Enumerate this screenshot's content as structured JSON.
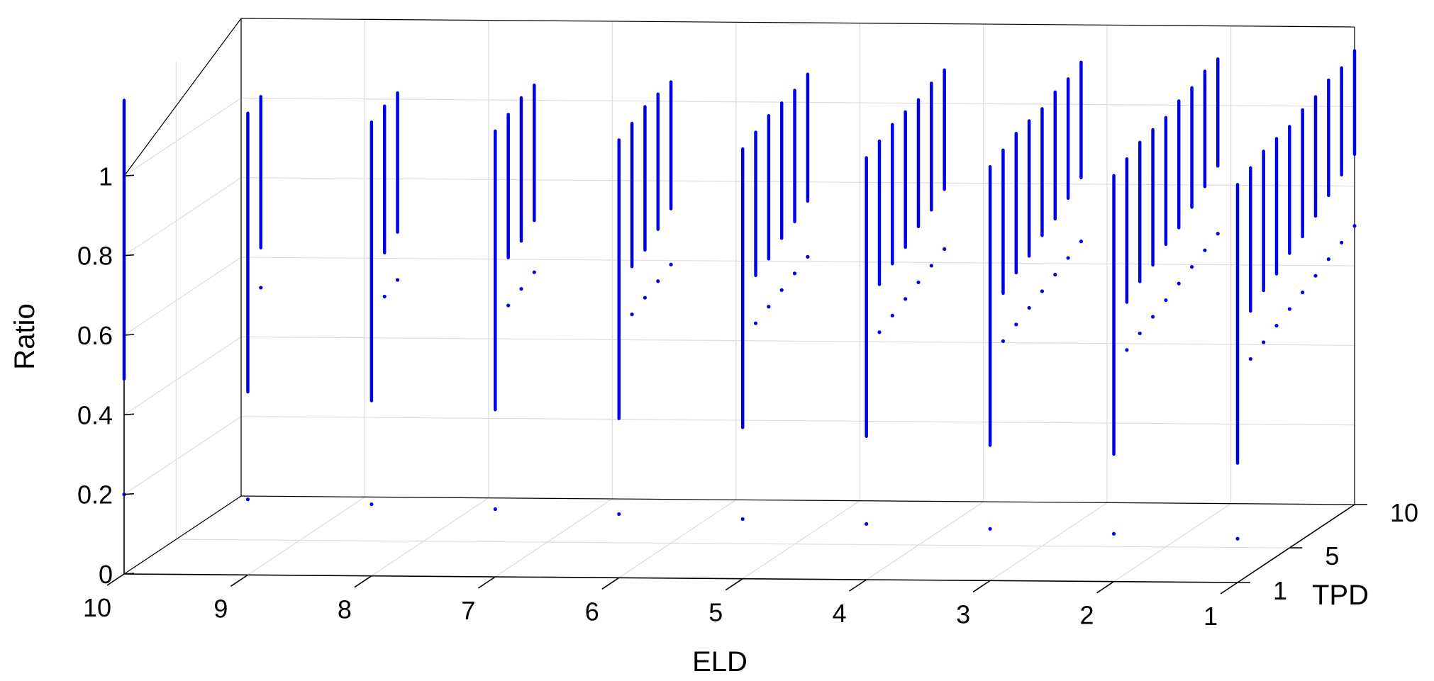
{
  "chart_data": {
    "type": "scatter3d",
    "title": "",
    "xlabel": "ELD",
    "ylabel": "TPD",
    "zlabel": "Ratio",
    "x_ticks": [
      "10",
      "9",
      "8",
      "7",
      "6",
      "5",
      "4",
      "3",
      "2",
      "1"
    ],
    "y_ticks": [
      "1",
      "5",
      "10"
    ],
    "z_ticks": [
      "0",
      "0.2",
      "0.4",
      "0.6",
      "0.8",
      "1"
    ],
    "xlim": [
      1,
      10
    ],
    "ylim": [
      1,
      10
    ],
    "zlim": [
      0,
      1.2
    ],
    "x_direction": "reversed",
    "grid": true,
    "marker_color": "#0000e6",
    "marker": "dot",
    "series": [
      {
        "eld": 10,
        "ranges": [
          [
            1,
            0.49,
            1.19
          ]
        ],
        "singles": [
          [
            1,
            0.2
          ]
        ]
      },
      {
        "eld": 9,
        "ranges": [
          [
            1,
            0.46,
            1.16
          ],
          [
            2,
            0.8,
            1.18
          ]
        ],
        "singles": [
          [
            1,
            0.19
          ],
          [
            2,
            0.7
          ]
        ]
      },
      {
        "eld": 8,
        "ranges": [
          [
            1,
            0.44,
            1.14
          ],
          [
            2,
            0.79,
            1.16
          ],
          [
            3,
            0.82,
            1.17
          ]
        ],
        "singles": [
          [
            1,
            0.18
          ],
          [
            2,
            0.68
          ],
          [
            3,
            0.7
          ]
        ]
      },
      {
        "eld": 7,
        "ranges": [
          [
            1,
            0.42,
            1.12
          ],
          [
            2,
            0.78,
            1.14
          ],
          [
            3,
            0.8,
            1.16
          ],
          [
            4,
            0.83,
            1.17
          ]
        ],
        "singles": [
          [
            1,
            0.17
          ],
          [
            2,
            0.66
          ],
          [
            3,
            0.68
          ],
          [
            4,
            0.7
          ]
        ]
      },
      {
        "eld": 6,
        "ranges": [
          [
            1,
            0.4,
            1.1
          ],
          [
            2,
            0.76,
            1.12
          ],
          [
            3,
            0.78,
            1.14
          ],
          [
            4,
            0.81,
            1.15
          ],
          [
            5,
            0.84,
            1.16
          ]
        ],
        "singles": [
          [
            1,
            0.16
          ],
          [
            2,
            0.64
          ],
          [
            3,
            0.66
          ],
          [
            4,
            0.68
          ],
          [
            5,
            0.7
          ]
        ]
      },
      {
        "eld": 5,
        "ranges": [
          [
            1,
            0.38,
            1.08
          ],
          [
            2,
            0.74,
            1.1
          ],
          [
            3,
            0.76,
            1.12
          ],
          [
            4,
            0.79,
            1.13
          ],
          [
            5,
            0.81,
            1.14
          ],
          [
            6,
            0.84,
            1.16
          ]
        ],
        "singles": [
          [
            1,
            0.15
          ],
          [
            2,
            0.62
          ],
          [
            3,
            0.64
          ],
          [
            4,
            0.66
          ],
          [
            5,
            0.68
          ],
          [
            6,
            0.7
          ]
        ]
      },
      {
        "eld": 4,
        "ranges": [
          [
            1,
            0.36,
            1.06
          ],
          [
            2,
            0.72,
            1.08
          ],
          [
            3,
            0.75,
            1.1
          ],
          [
            4,
            0.77,
            1.11
          ],
          [
            5,
            0.8,
            1.12
          ],
          [
            6,
            0.82,
            1.14
          ],
          [
            7,
            0.85,
            1.15
          ]
        ],
        "singles": [
          [
            1,
            0.14
          ],
          [
            2,
            0.6
          ],
          [
            3,
            0.62
          ],
          [
            4,
            0.64
          ],
          [
            5,
            0.66
          ],
          [
            6,
            0.68
          ],
          [
            7,
            0.7
          ]
        ]
      },
      {
        "eld": 3,
        "ranges": [
          [
            1,
            0.34,
            1.04
          ],
          [
            2,
            0.7,
            1.06
          ],
          [
            3,
            0.73,
            1.08
          ],
          [
            4,
            0.75,
            1.09
          ],
          [
            5,
            0.78,
            1.1
          ],
          [
            6,
            0.8,
            1.12
          ],
          [
            7,
            0.83,
            1.13
          ],
          [
            8,
            0.86,
            1.15
          ]
        ],
        "singles": [
          [
            1,
            0.13
          ],
          [
            2,
            0.58
          ],
          [
            3,
            0.6
          ],
          [
            4,
            0.62
          ],
          [
            5,
            0.64
          ],
          [
            6,
            0.66
          ],
          [
            7,
            0.68
          ],
          [
            8,
            0.7
          ]
        ]
      },
      {
        "eld": 2,
        "ranges": [
          [
            1,
            0.32,
            1.02
          ],
          [
            2,
            0.68,
            1.04
          ],
          [
            3,
            0.71,
            1.06
          ],
          [
            4,
            0.73,
            1.07
          ],
          [
            5,
            0.76,
            1.08
          ],
          [
            6,
            0.78,
            1.1
          ],
          [
            7,
            0.81,
            1.11
          ],
          [
            8,
            0.84,
            1.13
          ],
          [
            9,
            0.87,
            1.14
          ]
        ],
        "singles": [
          [
            1,
            0.12
          ],
          [
            2,
            0.56
          ],
          [
            3,
            0.58
          ],
          [
            4,
            0.6
          ],
          [
            5,
            0.62
          ],
          [
            6,
            0.64
          ],
          [
            7,
            0.66
          ],
          [
            8,
            0.68
          ],
          [
            9,
            0.7
          ]
        ]
      },
      {
        "eld": 1,
        "ranges": [
          [
            1,
            0.3,
            1.0
          ],
          [
            2,
            0.66,
            1.02
          ],
          [
            3,
            0.69,
            1.04
          ],
          [
            4,
            0.71,
            1.05
          ],
          [
            5,
            0.74,
            1.06
          ],
          [
            6,
            0.76,
            1.08
          ],
          [
            7,
            0.79,
            1.09
          ],
          [
            8,
            0.82,
            1.11
          ],
          [
            9,
            0.85,
            1.12
          ],
          [
            10,
            0.88,
            1.14
          ]
        ],
        "singles": [
          [
            1,
            0.11
          ],
          [
            2,
            0.54
          ],
          [
            3,
            0.56
          ],
          [
            4,
            0.58
          ],
          [
            5,
            0.6
          ],
          [
            6,
            0.62
          ],
          [
            7,
            0.64
          ],
          [
            8,
            0.66
          ],
          [
            9,
            0.68
          ],
          [
            10,
            0.7
          ]
        ]
      }
    ]
  }
}
